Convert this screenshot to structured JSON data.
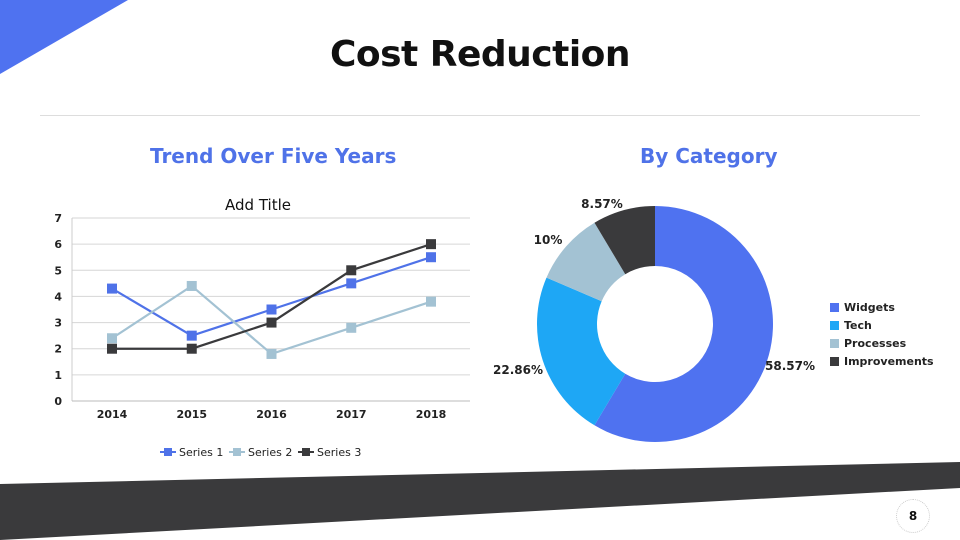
{
  "slide": {
    "title": "Cost Reduction",
    "page_number": "8",
    "accent": "#4f72e8",
    "dark": "#3a3a3c"
  },
  "left": {
    "subtitle": "Trend Over Five Years"
  },
  "right": {
    "subtitle": "By Category"
  },
  "chart_data": [
    {
      "type": "line",
      "title": "Add Title",
      "categories": [
        "2014",
        "2015",
        "2016",
        "2017",
        "2018"
      ],
      "ylim": [
        0,
        7
      ],
      "yticks": [
        0,
        1,
        2,
        3,
        4,
        5,
        6,
        7
      ],
      "grid": true,
      "legend": "bottom",
      "series": [
        {
          "name": "Series 1",
          "values": [
            4.3,
            2.5,
            3.5,
            4.5,
            5.5
          ],
          "color": "#4f72e8"
        },
        {
          "name": "Series 2",
          "values": [
            2.4,
            4.4,
            1.8,
            2.8,
            3.8
          ],
          "color": "#a3c2d3"
        },
        {
          "name": "Series 3",
          "values": [
            2,
            2,
            3,
            5,
            6
          ],
          "color": "#3a3a3c"
        }
      ]
    },
    {
      "type": "pie",
      "donut": true,
      "legend": "right",
      "slices": [
        {
          "label": "Widgets",
          "value": 58.57,
          "text": "58.57%",
          "color": "#4f72f0"
        },
        {
          "label": "Tech",
          "value": 22.86,
          "text": "22.86%",
          "color": "#1ea7f5"
        },
        {
          "label": "Processes",
          "value": 10,
          "text": "10%",
          "color": "#a3c2d3"
        },
        {
          "label": "Improvements",
          "value": 8.57,
          "text": "8.57%",
          "color": "#3a3a3c"
        }
      ]
    }
  ]
}
